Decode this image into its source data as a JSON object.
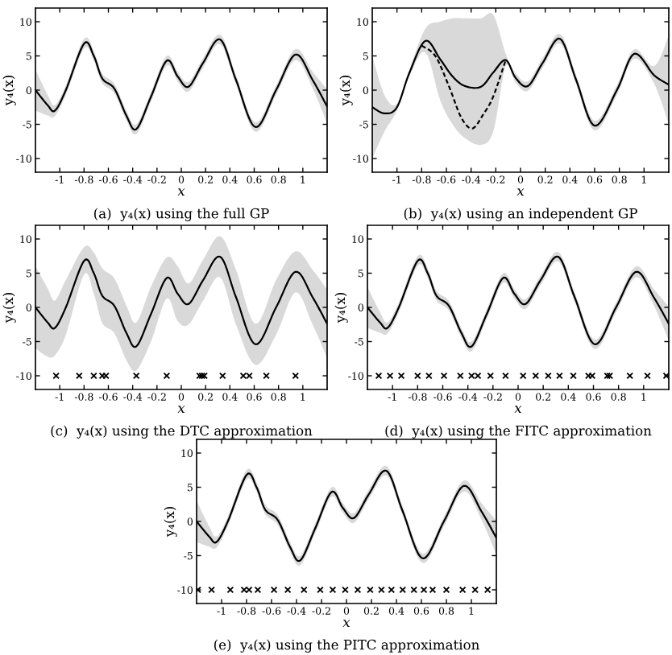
{
  "chart_data": [
    {
      "type": "line",
      "title": "(a)  y₄(x) using the full GP",
      "xlabel": "x",
      "ylabel": "y₄(x)",
      "xlim": [
        -1.2,
        1.2
      ],
      "ylim": [
        -12,
        12
      ],
      "xticks": [
        -1,
        -0.8,
        -0.6,
        -0.4,
        -0.2,
        0,
        0.2,
        0.4,
        0.6,
        0.8,
        1
      ],
      "yticks": [
        -10,
        -5,
        0,
        5,
        10
      ],
      "grid": false,
      "series": [
        {
          "color": "#000000",
          "x": [
            -1.2,
            -1.1,
            -1.04,
            -0.95,
            -0.8,
            -0.72,
            -0.65,
            -0.55,
            -0.45,
            -0.37,
            -0.25,
            -0.12,
            -0.03,
            0.06,
            0.18,
            0.32,
            0.45,
            0.61,
            0.78,
            0.94,
            1.08,
            1.2
          ],
          "values": [
            0,
            -2.2,
            -3.0,
            0,
            6.8,
            5.0,
            1.7,
            0.2,
            -3.8,
            -5.7,
            -1.0,
            4.3,
            2.0,
            0.5,
            4.0,
            7.4,
            1.5,
            -5.4,
            0,
            5.2,
            1.5,
            -2.4
          ],
          "lower": [
            -3,
            -3.7,
            -3.8,
            -0.7,
            6.1,
            4.3,
            1.0,
            -0.5,
            -4.5,
            -6.4,
            -1.7,
            3.6,
            1.3,
            -0.2,
            3.3,
            6.7,
            0.8,
            -6.1,
            -0.7,
            4.4,
            0.3,
            -4.9
          ],
          "upper": [
            3,
            -0.7,
            -2.2,
            0.7,
            7.5,
            5.7,
            2.4,
            0.9,
            -3.1,
            -5.0,
            -0.3,
            5.0,
            2.7,
            1.2,
            4.7,
            8.1,
            2.2,
            -4.7,
            0.7,
            6.0,
            2.7,
            0.1
          ]
        }
      ]
    },
    {
      "type": "line",
      "title": "(b)  y₄(x) using an independent GP",
      "xlabel": "x",
      "ylabel": "y₄(x)",
      "xlim": [
        -1.2,
        1.2
      ],
      "ylim": [
        -12,
        12
      ],
      "xticks": [
        -1,
        -0.8,
        -0.6,
        -0.4,
        -0.2,
        0,
        0.2,
        0.4,
        0.6,
        0.8,
        1
      ],
      "yticks": [
        -10,
        -5,
        0,
        5,
        10
      ],
      "grid": false,
      "series": [
        {
          "color": "#000000",
          "x": [
            -1.2,
            -1.1,
            -1.0,
            -0.9,
            -0.77,
            -0.65,
            -0.55,
            -0.45,
            -0.32,
            -0.22,
            -0.12,
            -0.04,
            0.06,
            0.18,
            0.32,
            0.45,
            0.6,
            0.78,
            0.92,
            1.08,
            1.2
          ],
          "values": [
            -2.5,
            -3.4,
            -2.5,
            2.5,
            7.2,
            4.5,
            2.0,
            0.6,
            0.5,
            2.6,
            4.4,
            1.8,
            0.6,
            4.0,
            7.5,
            1.5,
            -5.2,
            0,
            5.3,
            2.2,
            0.8
          ],
          "lower": [
            -10,
            -6,
            -3.0,
            2,
            5.5,
            -1.5,
            -5,
            -7,
            -8,
            -6,
            3.5,
            1.1,
            -0.1,
            3.3,
            6.8,
            0.8,
            -5.9,
            -0.7,
            4.6,
            1.0,
            -5
          ],
          "upper": [
            5,
            -0.8,
            -2.0,
            3,
            9,
            10,
            10.5,
            10.5,
            10.5,
            11,
            5.3,
            2.5,
            1.3,
            4.7,
            8.2,
            2.2,
            -4.5,
            0.7,
            6.0,
            3.5,
            8
          ]
        },
        {
          "color": "#000000",
          "line_style": "dashed",
          "x": [
            -0.8,
            -0.69,
            -0.58,
            -0.48,
            -0.39,
            -0.3,
            -0.22,
            -0.12
          ],
          "values": [
            6.5,
            5.0,
            0.6,
            -4,
            -5.6,
            -3.5,
            -0.9,
            4.4
          ]
        }
      ]
    },
    {
      "type": "line",
      "title": "(c)  y₄(x) using the DTC approximation",
      "xlabel": "x",
      "ylabel": "y₄(x)",
      "xlim": [
        -1.2,
        1.2
      ],
      "ylim": [
        -12,
        12
      ],
      "xticks": [
        -1,
        -0.8,
        -0.6,
        -0.4,
        -0.2,
        0,
        0.2,
        0.4,
        0.6,
        0.8,
        1
      ],
      "yticks": [
        -10,
        -5,
        0,
        5,
        10
      ],
      "grid": false,
      "series": [
        {
          "color": "#000000",
          "x": [
            -1.2,
            -1.1,
            -1.04,
            -0.95,
            -0.8,
            -0.72,
            -0.65,
            -0.55,
            -0.45,
            -0.37,
            -0.25,
            -0.12,
            -0.03,
            0.06,
            0.18,
            0.32,
            0.45,
            0.61,
            0.78,
            0.94,
            1.08,
            1.2
          ],
          "values": [
            0,
            -2.2,
            -3.0,
            0,
            6.8,
            5.0,
            1.7,
            0.2,
            -3.8,
            -5.7,
            -1.0,
            4.3,
            2.0,
            0.5,
            4.0,
            7.4,
            1.5,
            -5.4,
            0,
            5.2,
            1.5,
            -2.4
          ],
          "lower": [
            -6,
            -7.2,
            -7,
            -4,
            4.8,
            2,
            -2.3,
            -3.8,
            -7.8,
            -9.2,
            -5,
            1.3,
            -2,
            -2.5,
            1,
            4.4,
            -2.5,
            -8.4,
            -4,
            2.2,
            -2.5,
            -7.4
          ],
          "upper": [
            6,
            2.8,
            1,
            4,
            8.8,
            8,
            5.7,
            4.2,
            0.2,
            -2.2,
            3,
            7.3,
            6,
            3.5,
            7,
            10.4,
            5.5,
            -2.4,
            4,
            8.2,
            5.5,
            2.6
          ]
        },
        {
          "type": "scatter",
          "marker": "cross",
          "color": "#000000",
          "x": [
            -1.03,
            -0.84,
            -0.72,
            -0.65,
            -0.62,
            -0.37,
            -0.12,
            0.15,
            0.17,
            0.19,
            0.34,
            0.51,
            0.56,
            0.7,
            0.94
          ],
          "values": [
            -10,
            -10,
            -10,
            -10,
            -10,
            -10,
            -10,
            -10,
            -10,
            -10,
            -10,
            -10,
            -10,
            -10,
            -10
          ]
        }
      ]
    },
    {
      "type": "line",
      "title": "(d)  y₄(x) using the FITC approximation",
      "xlabel": "x",
      "ylabel": "y₄(x)",
      "xlim": [
        -1.2,
        1.2
      ],
      "ylim": [
        -12,
        12
      ],
      "xticks": [
        -1,
        -0.8,
        -0.6,
        -0.4,
        -0.2,
        0,
        0.2,
        0.4,
        0.6,
        0.8,
        1
      ],
      "yticks": [
        -10,
        -5,
        0,
        5,
        10
      ],
      "grid": false,
      "series": [
        {
          "color": "#000000",
          "x": [
            -1.2,
            -1.1,
            -1.04,
            -0.95,
            -0.8,
            -0.72,
            -0.65,
            -0.55,
            -0.45,
            -0.37,
            -0.25,
            -0.12,
            -0.03,
            0.06,
            0.18,
            0.32,
            0.45,
            0.61,
            0.78,
            0.94,
            1.08,
            1.2
          ],
          "values": [
            0,
            -2.2,
            -3.0,
            0,
            6.8,
            5.0,
            1.7,
            0.2,
            -3.8,
            -5.7,
            -1.0,
            4.3,
            2.0,
            0.5,
            4.0,
            7.4,
            1.5,
            -5.4,
            0,
            5.2,
            1.5,
            -2.4
          ],
          "lower": [
            -3,
            -3.7,
            -3.8,
            -0.7,
            6.1,
            4.3,
            1.0,
            -0.5,
            -4.5,
            -6.4,
            -1.7,
            3.6,
            1.3,
            -0.2,
            3.3,
            6.7,
            0.8,
            -6.1,
            -0.7,
            4.4,
            0.3,
            -4.9
          ],
          "upper": [
            3,
            -0.7,
            -2.2,
            0.7,
            7.5,
            5.7,
            2.4,
            0.9,
            -3.1,
            -5.0,
            -0.3,
            5.0,
            2.7,
            1.2,
            4.7,
            8.1,
            2.2,
            -4.7,
            0.7,
            6.0,
            2.7,
            0.1
          ]
        },
        {
          "type": "scatter",
          "marker": "cross",
          "color": "#000000",
          "x": [
            -1.11,
            -1.02,
            -0.93,
            -0.8,
            -0.71,
            -0.59,
            -0.46,
            -0.37,
            -0.32,
            -0.22,
            -0.1,
            0.04,
            0.14,
            0.24,
            0.33,
            0.44,
            0.56,
            0.59,
            0.71,
            0.73,
            0.89,
            1.03,
            1.18
          ],
          "values": [
            -10,
            -10,
            -10,
            -10,
            -10,
            -10,
            -10,
            -10,
            -10,
            -10,
            -10,
            -10,
            -10,
            -10,
            -10,
            -10,
            -10,
            -10,
            -10,
            -10,
            -10,
            -10,
            -10
          ]
        }
      ]
    },
    {
      "type": "line",
      "title": "(e)  y₄(x) using the PITC approximation",
      "xlabel": "x",
      "ylabel": "y₄(x)",
      "xlim": [
        -1.2,
        1.2
      ],
      "ylim": [
        -12,
        12
      ],
      "xticks": [
        -1,
        -0.8,
        -0.6,
        -0.4,
        -0.2,
        0,
        0.2,
        0.4,
        0.6,
        0.8,
        1
      ],
      "yticks": [
        -10,
        -5,
        0,
        5,
        10
      ],
      "grid": false,
      "series": [
        {
          "color": "#000000",
          "x": [
            -1.2,
            -1.1,
            -1.04,
            -0.95,
            -0.8,
            -0.72,
            -0.65,
            -0.55,
            -0.45,
            -0.37,
            -0.25,
            -0.12,
            -0.03,
            0.06,
            0.18,
            0.32,
            0.45,
            0.61,
            0.78,
            0.94,
            1.08,
            1.2
          ],
          "values": [
            0,
            -2.2,
            -3.0,
            0,
            6.8,
            5.0,
            1.7,
            0.2,
            -3.8,
            -5.7,
            -1.0,
            4.3,
            2.0,
            0.5,
            4.0,
            7.4,
            1.5,
            -5.4,
            0,
            5.2,
            1.5,
            -2.4
          ],
          "lower": [
            -3,
            -3.7,
            -3.8,
            -0.7,
            6.1,
            4.3,
            1.0,
            -0.5,
            -4.5,
            -6.4,
            -1.7,
            3.6,
            1.3,
            -0.2,
            3.3,
            6.7,
            0.8,
            -6.1,
            -0.7,
            4.4,
            0.3,
            -4.9
          ],
          "upper": [
            3,
            -0.7,
            -2.2,
            0.7,
            7.5,
            5.7,
            2.4,
            0.9,
            -3.1,
            -5.0,
            -0.3,
            5.0,
            2.7,
            1.2,
            4.7,
            8.1,
            2.2,
            -4.7,
            0.7,
            6.0,
            2.7,
            0.1
          ]
        },
        {
          "type": "scatter",
          "marker": "cross",
          "color": "#000000",
          "x": [
            -1.19,
            -1.08,
            -0.93,
            -0.82,
            -0.78,
            -0.71,
            -0.58,
            -0.47,
            -0.34,
            -0.21,
            -0.11,
            -0.01,
            0.09,
            0.19,
            0.28,
            0.36,
            0.45,
            0.54,
            0.62,
            0.69,
            0.8,
            0.93,
            1.03,
            1.13
          ],
          "values": [
            -10,
            -10,
            -10,
            -10,
            -10,
            -10,
            -10,
            -10,
            -10,
            -10,
            -10,
            -10,
            -10,
            -10,
            -10,
            -10,
            -10,
            -10,
            -10,
            -10,
            -10,
            -10,
            -10,
            -10
          ]
        }
      ]
    }
  ]
}
